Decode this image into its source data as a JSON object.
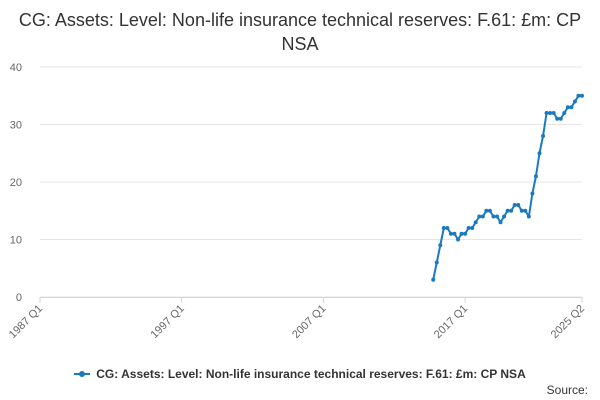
{
  "chart_data": {
    "type": "line",
    "title": "CG: Assets: Level: Non-life insurance technical reserves: F.61: £m: CP NSA",
    "xlabel": "",
    "ylabel": "",
    "ylim": [
      0,
      40
    ],
    "y_ticks": [
      "0",
      "10",
      "20",
      "30",
      "40"
    ],
    "x_range": [
      "1987 Q1",
      "2025 Q2"
    ],
    "x_ticks": [
      "1987 Q1",
      "1997 Q1",
      "2007 Q1",
      "2017 Q1",
      "2025 Q2"
    ],
    "grid": true,
    "legend_position": "bottom",
    "series": [
      {
        "name": "CG: Assets: Level: Non-life insurance technical reserves: F.61: £m: CP NSA",
        "color": "#1a7abf",
        "x": [
          "2014 Q4",
          "2015 Q1",
          "2015 Q2",
          "2015 Q3",
          "2015 Q4",
          "2016 Q1",
          "2016 Q2",
          "2016 Q3",
          "2016 Q4",
          "2017 Q1",
          "2017 Q2",
          "2017 Q3",
          "2017 Q4",
          "2018 Q1",
          "2018 Q2",
          "2018 Q3",
          "2018 Q4",
          "2019 Q1",
          "2019 Q2",
          "2019 Q3",
          "2019 Q4",
          "2020 Q1",
          "2020 Q2",
          "2020 Q3",
          "2020 Q4",
          "2021 Q1",
          "2021 Q2",
          "2021 Q3",
          "2021 Q4",
          "2022 Q1",
          "2022 Q2",
          "2022 Q3",
          "2022 Q4",
          "2023 Q1",
          "2023 Q2",
          "2023 Q3",
          "2023 Q4",
          "2024 Q1",
          "2024 Q2",
          "2024 Q3",
          "2024 Q4",
          "2025 Q1",
          "2025 Q2"
        ],
        "values": [
          3,
          6,
          9,
          12,
          12,
          11,
          11,
          10,
          11,
          11,
          12,
          12,
          13,
          14,
          14,
          15,
          15,
          14,
          14,
          13,
          14,
          15,
          15,
          16,
          16,
          15,
          15,
          14,
          18,
          21,
          25,
          28,
          32,
          32,
          32,
          31,
          31,
          32,
          33,
          33,
          34,
          35,
          35
        ]
      }
    ]
  },
  "source_label": "Source:"
}
